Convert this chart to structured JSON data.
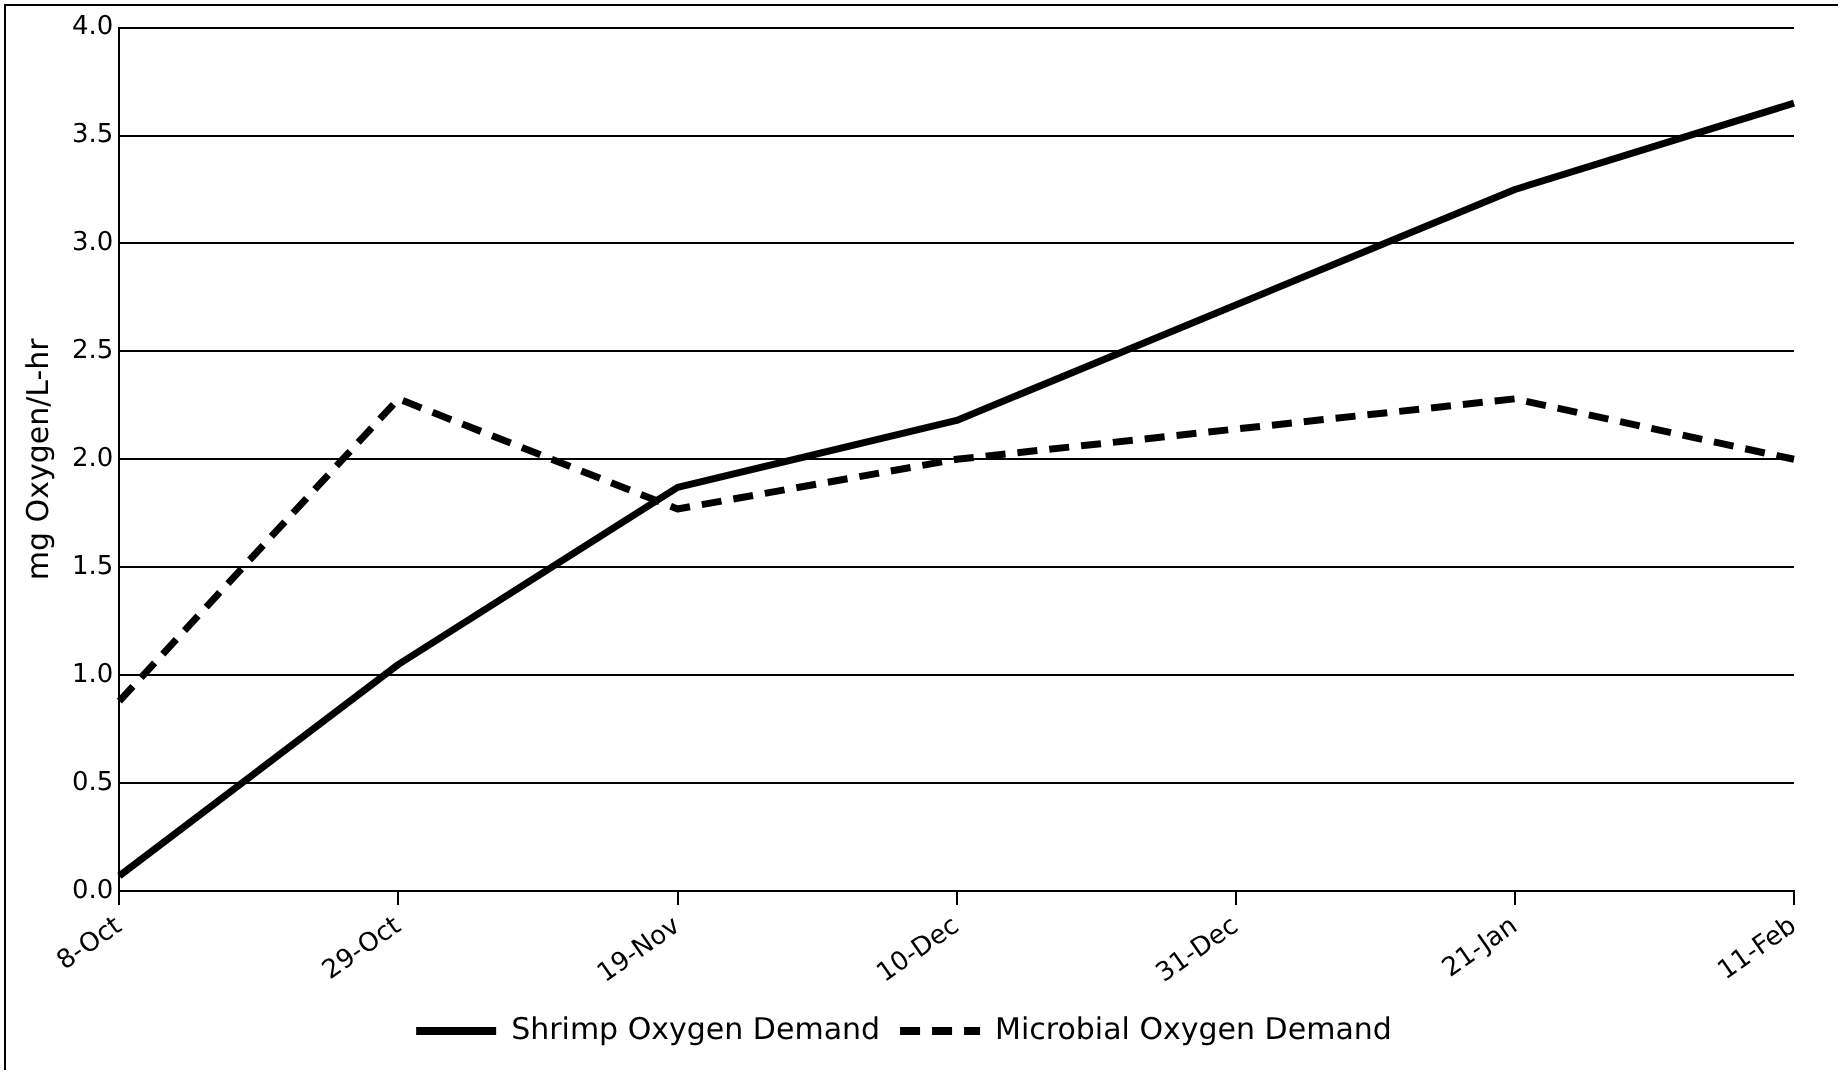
{
  "chart_data": {
    "type": "line",
    "ylabel": "mg Oxygen/L-hr",
    "categories": [
      "8-Oct",
      "29-Oct",
      "19-Nov",
      "10-Dec",
      "31-Dec",
      "21-Jan",
      "11-Feb"
    ],
    "series": [
      {
        "name": "Shrimp Oxygen Demand",
        "color": "#000000",
        "values": [
          0.07,
          1.05,
          1.87,
          2.18,
          null,
          3.25,
          3.65
        ],
        "line_style": "solid"
      },
      {
        "name": "Microbial Oxygen Demand",
        "color": "#000000",
        "values": [
          0.88,
          2.28,
          1.77,
          2.0,
          null,
          2.28,
          2.0
        ],
        "line_style": "dashed"
      }
    ],
    "ylim": [
      0,
      4
    ],
    "yticks": [
      {
        "value": 0,
        "label": "0.0"
      },
      {
        "value": 0.5,
        "label": "0.5"
      },
      {
        "value": 1,
        "label": "1.0"
      },
      {
        "value": 1.5,
        "label": "1.5"
      },
      {
        "value": 2,
        "label": "2.0"
      },
      {
        "value": 2.5,
        "label": "2.5"
      },
      {
        "value": 3,
        "label": "3.0"
      },
      {
        "value": 3.5,
        "label": "3.5"
      },
      {
        "value": 4,
        "label": "4.0"
      }
    ],
    "grid": "y",
    "legend": "bottom",
    "marker": "none"
  }
}
